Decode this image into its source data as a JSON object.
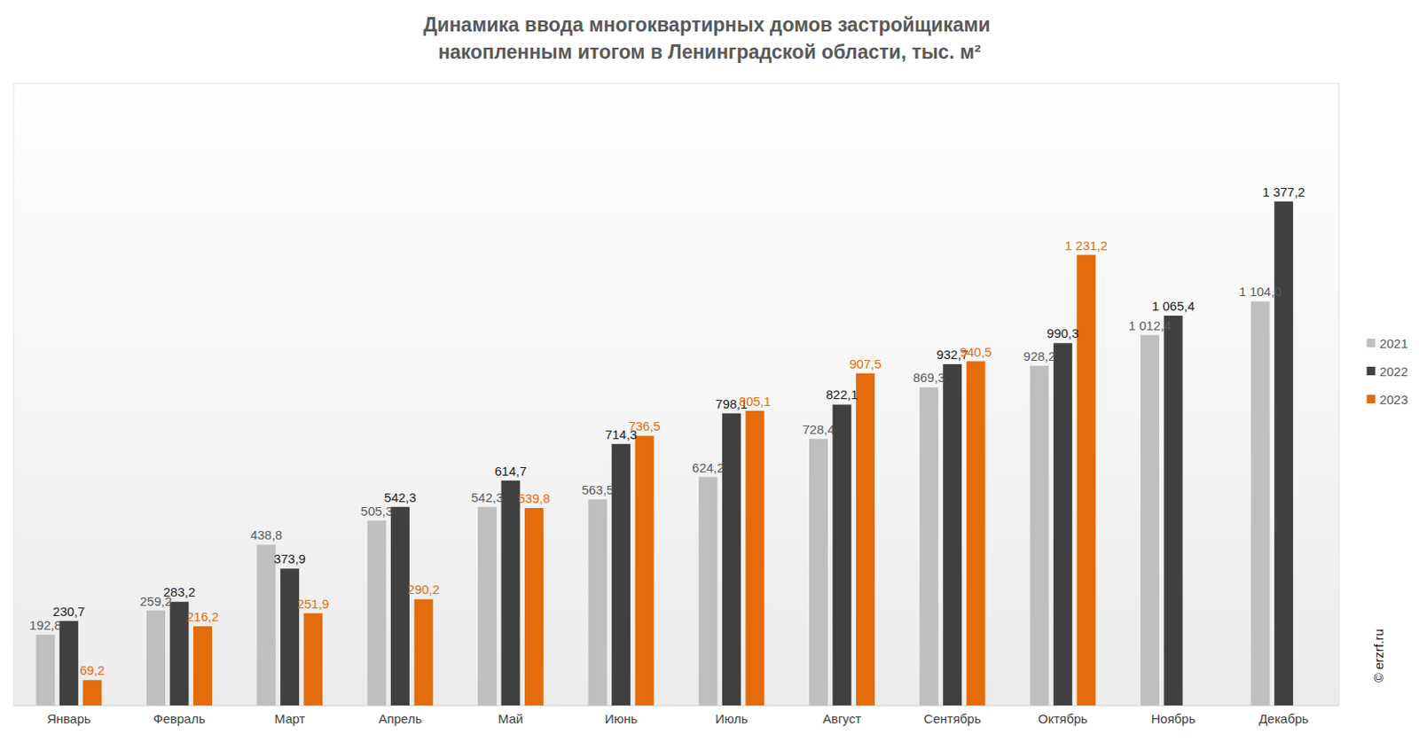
{
  "chart_data": {
    "type": "bar",
    "title": "Динамика ввода многоквартирных домов застройщиками накопленным итогом в Ленинградской области, тыс. м²",
    "annotations": [
      "© erzrf.ru"
    ],
    "categories": [
      "Январь",
      "Февраль",
      "Март",
      "Апрель",
      "Май",
      "Июнь",
      "Июль",
      "Август",
      "Сентябрь",
      "Октябрь",
      "Ноябрь",
      "Декабрь"
    ],
    "series": [
      {
        "name": "2021",
        "color": "#bfbfbf",
        "values": [
          192.8,
          259.2,
          438.8,
          505.3,
          542.3,
          563.5,
          624.2,
          728.4,
          869.3,
          928.2,
          1012.4,
          1104.0
        ],
        "value_labels": [
          "192,8",
          "259,2",
          "438,8",
          "505,3",
          "542,3",
          "563,5",
          "624,2",
          "728,4",
          "869,3",
          "928,2",
          "1 012,4",
          "1 104,0"
        ]
      },
      {
        "name": "2022",
        "color": "#404040",
        "values": [
          230.7,
          283.2,
          373.9,
          542.3,
          614.7,
          714.3,
          798.1,
          822.1,
          932.7,
          990.3,
          1065.4,
          1377.2
        ],
        "value_labels": [
          "230,7",
          "283,2",
          "373,9",
          "542,3",
          "614,7",
          "714,3",
          "798,1",
          "822,1",
          "932,7",
          "990,3",
          "1 065,4",
          "1 377,2"
        ]
      },
      {
        "name": "2023",
        "color": "#e46c0a",
        "values": [
          69.2,
          216.2,
          251.9,
          290.2,
          539.8,
          736.5,
          805.1,
          907.5,
          940.5,
          1231.2,
          null,
          null
        ],
        "value_labels": [
          "69,2",
          "216,2",
          "251,9",
          "290,2",
          "539,8",
          "736,5",
          "805,1",
          "907,5",
          "940,5",
          "1 231,2",
          null,
          null
        ]
      }
    ],
    "ylim": [
      0,
      1700
    ],
    "grid": false,
    "legend": "right",
    "data_labels": true,
    "tick_labels": "x"
  }
}
